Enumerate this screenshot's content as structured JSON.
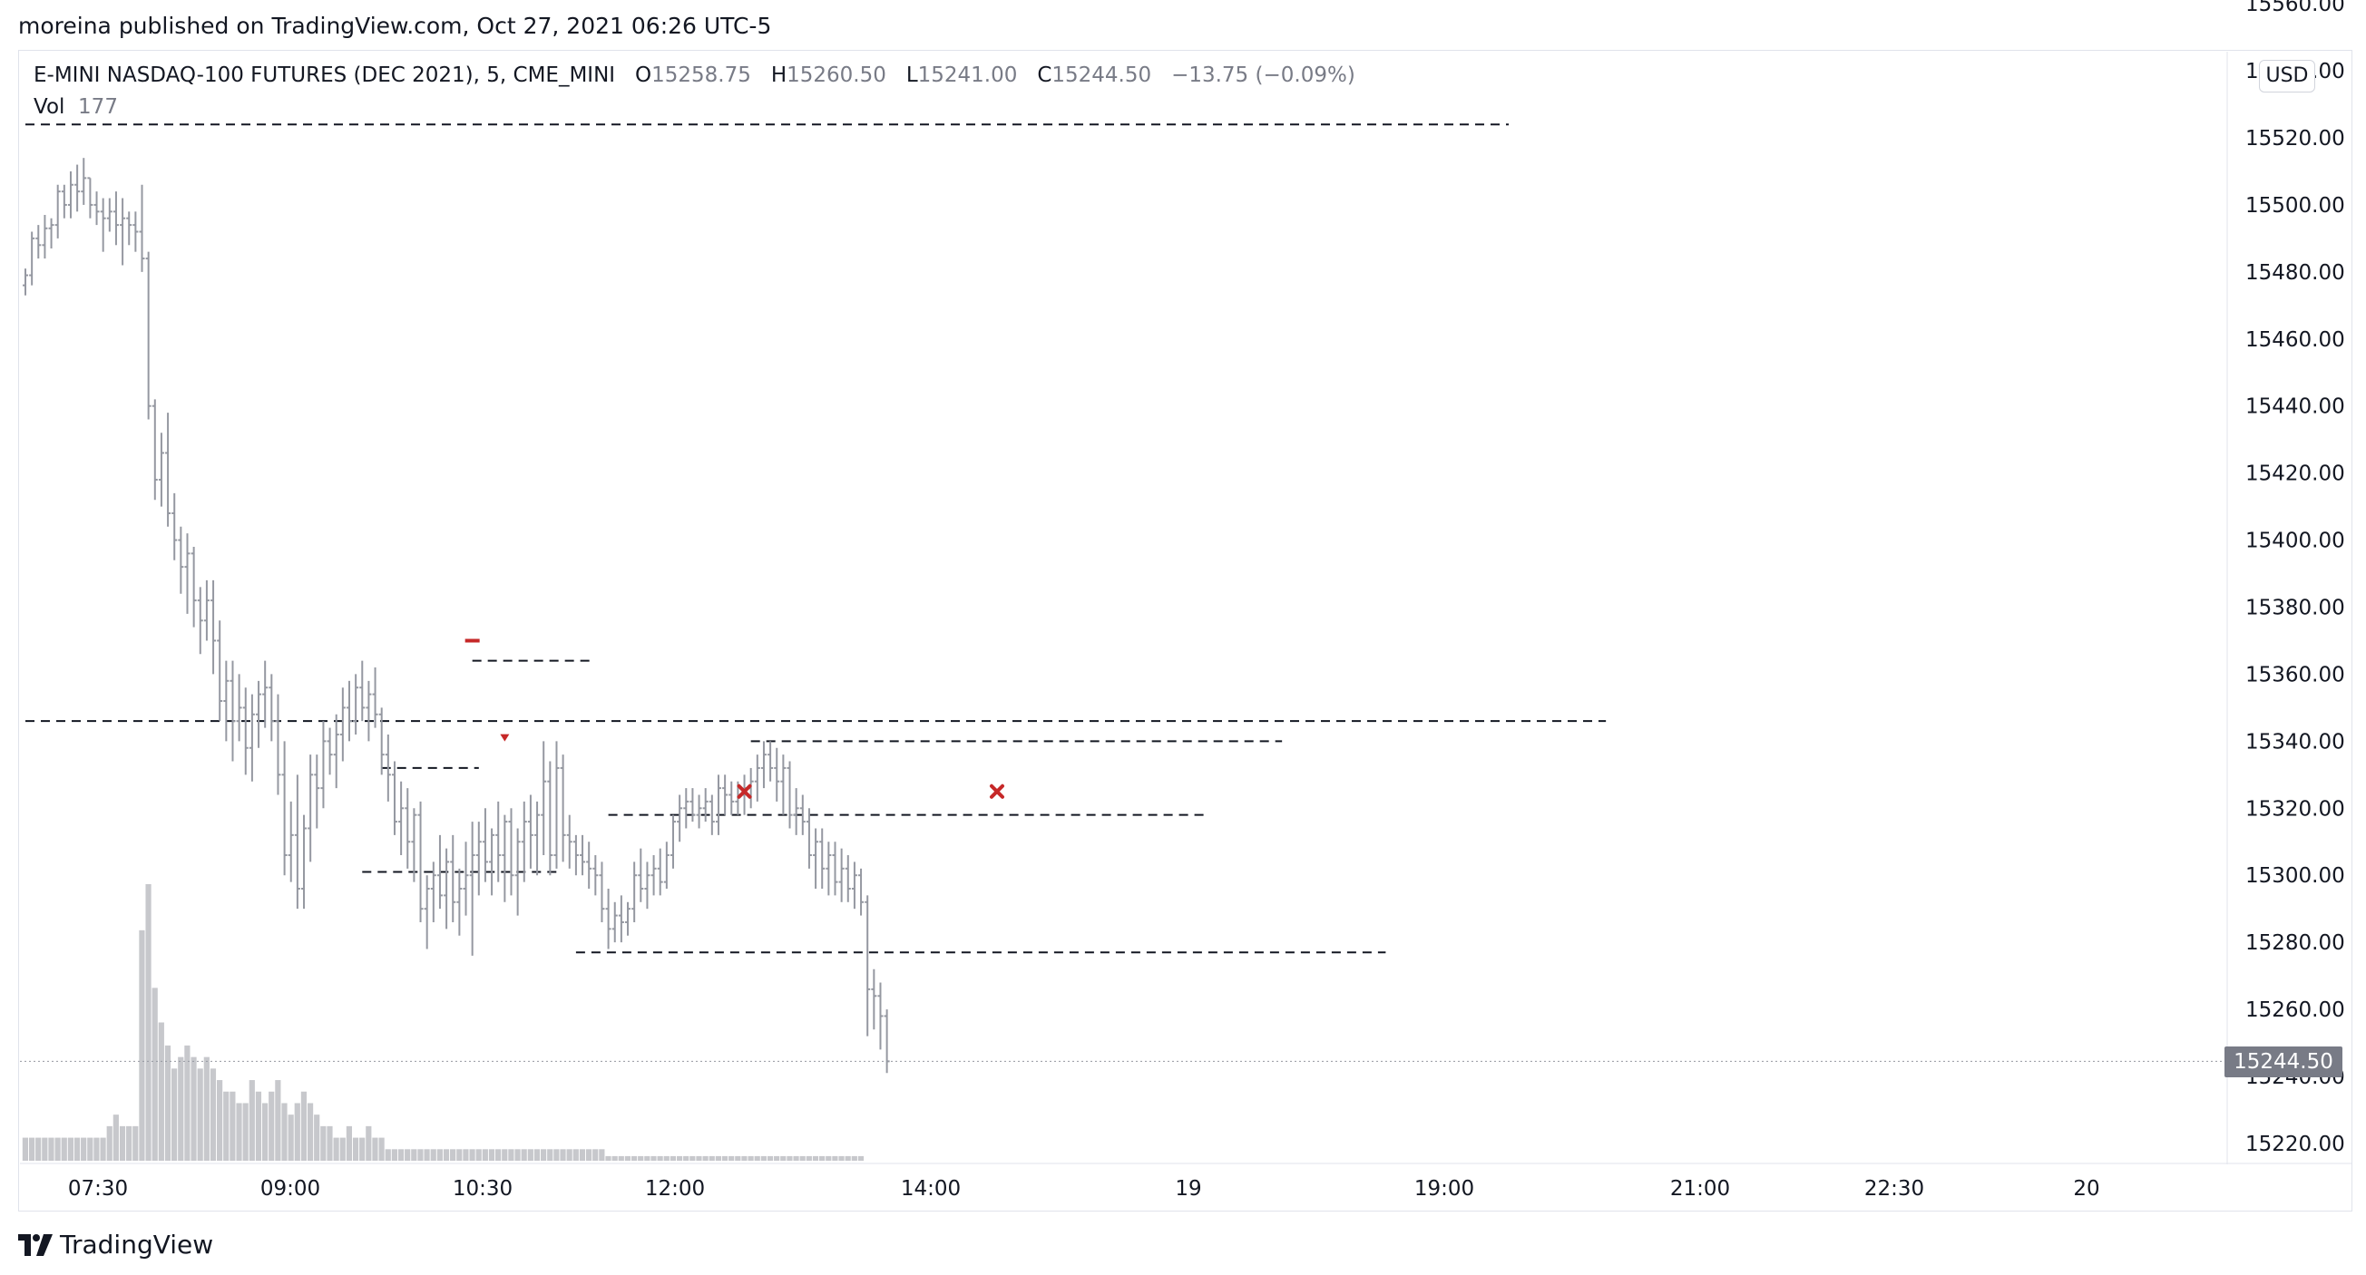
{
  "header": {
    "publish_line": "moreina published on TradingView.com, Oct 27, 2021 06:26 UTC-5"
  },
  "legend": {
    "symbol": "E-MINI NASDAQ-100 FUTURES (DEC 2021), 5, CME_MINI",
    "o_key": "O",
    "o_val": "15258.75",
    "h_key": "H",
    "h_val": "15260.50",
    "l_key": "L",
    "l_val": "15241.00",
    "c_key": "C",
    "c_val": "15244.50",
    "change": "−13.75 (−0.09%)",
    "vol_key": "Vol",
    "vol_val": "177"
  },
  "price_scale": {
    "currency_button": "USD",
    "last_price_label": "15244.50"
  },
  "brand": {
    "name": "TradingView"
  },
  "chart_data": {
    "type": "ohlc",
    "series_color": "#9598a1",
    "volume_color": "#c7c8cc",
    "ylim": [
      15210,
      15556
    ],
    "y_ticks": [
      "15560.00",
      "15540.00",
      "15520.00",
      "15500.00",
      "15480.00",
      "15460.00",
      "15440.00",
      "15420.00",
      "15400.00",
      "15380.00",
      "15360.00",
      "15340.00",
      "15320.00",
      "15300.00",
      "15280.00",
      "15260.00",
      "15240.00",
      "15220.00"
    ],
    "x_ticks": [
      "07:30",
      "09:00",
      "10:30",
      "12:00",
      "14:00",
      "19",
      "19:00",
      "21:00",
      "22:30",
      "20"
    ],
    "last_price": 15244.5,
    "bars_ohlc": [
      [
        15476,
        15481,
        15473,
        15479
      ],
      [
        15479,
        15492,
        15476,
        15490
      ],
      [
        15490,
        15494,
        15484,
        15488
      ],
      [
        15488,
        15497,
        15484,
        15493
      ],
      [
        15493,
        15496,
        15487,
        15494
      ],
      [
        15494,
        15506,
        15490,
        15504
      ],
      [
        15504,
        15506,
        15496,
        15500
      ],
      [
        15500,
        15510,
        15496,
        15506
      ],
      [
        15506,
        15512,
        15498,
        15504
      ],
      [
        15504,
        15514,
        15500,
        15508
      ],
      [
        15508,
        15508,
        15496,
        15500
      ],
      [
        15500,
        15504,
        15494,
        15498
      ],
      [
        15498,
        15502,
        15486,
        15496
      ],
      [
        15496,
        15502,
        15492,
        15498
      ],
      [
        15498,
        15504,
        15488,
        15494
      ],
      [
        15494,
        15502,
        15482,
        15496
      ],
      [
        15496,
        15498,
        15488,
        15494
      ],
      [
        15494,
        15498,
        15486,
        15492
      ],
      [
        15492,
        15506,
        15480,
        15484
      ],
      [
        15484,
        15486,
        15436,
        15440
      ],
      [
        15440,
        15442,
        15412,
        15418
      ],
      [
        15418,
        15432,
        15410,
        15426
      ],
      [
        15426,
        15438,
        15404,
        15408
      ],
      [
        15408,
        15414,
        15394,
        15400
      ],
      [
        15400,
        15404,
        15384,
        15392
      ],
      [
        15392,
        15402,
        15378,
        15396
      ],
      [
        15396,
        15398,
        15374,
        15382
      ],
      [
        15382,
        15386,
        15366,
        15376
      ],
      [
        15376,
        15388,
        15370,
        15382
      ],
      [
        15382,
        15388,
        15360,
        15370
      ],
      [
        15370,
        15376,
        15346,
        15352
      ],
      [
        15352,
        15364,
        15340,
        15358
      ],
      [
        15358,
        15364,
        15334,
        15346
      ],
      [
        15346,
        15360,
        15340,
        15350
      ],
      [
        15350,
        15356,
        15330,
        15338
      ],
      [
        15338,
        15354,
        15328,
        15348
      ],
      [
        15348,
        15358,
        15338,
        15354
      ],
      [
        15354,
        15364,
        15344,
        15356
      ],
      [
        15356,
        15360,
        15340,
        15346
      ],
      [
        15346,
        15354,
        15324,
        15330
      ],
      [
        15330,
        15340,
        15300,
        15306
      ],
      [
        15306,
        15322,
        15298,
        15312
      ],
      [
        15312,
        15330,
        15290,
        15296
      ],
      [
        15296,
        15318,
        15290,
        15314
      ],
      [
        15314,
        15336,
        15304,
        15330
      ],
      [
        15330,
        15336,
        15314,
        15326
      ],
      [
        15326,
        15346,
        15320,
        15340
      ],
      [
        15340,
        15344,
        15330,
        15336
      ],
      [
        15336,
        15348,
        15326,
        15342
      ],
      [
        15342,
        15356,
        15334,
        15350
      ],
      [
        15350,
        15358,
        15340,
        15346
      ],
      [
        15346,
        15360,
        15342,
        15356
      ],
      [
        15356,
        15364,
        15346,
        15350
      ],
      [
        15350,
        15358,
        15340,
        15354
      ],
      [
        15354,
        15362,
        15344,
        15348
      ],
      [
        15348,
        15350,
        15330,
        15336
      ],
      [
        15336,
        15342,
        15322,
        15330
      ],
      [
        15330,
        15334,
        15312,
        15316
      ],
      [
        15316,
        15328,
        15306,
        15320
      ],
      [
        15320,
        15326,
        15302,
        15310
      ],
      [
        15310,
        15320,
        15298,
        15318
      ],
      [
        15318,
        15322,
        15286,
        15290
      ],
      [
        15290,
        15300,
        15278,
        15296
      ],
      [
        15296,
        15304,
        15286,
        15300
      ],
      [
        15300,
        15312,
        15290,
        15294
      ],
      [
        15294,
        15308,
        15284,
        15304
      ],
      [
        15304,
        15312,
        15286,
        15292
      ],
      [
        15292,
        15302,
        15282,
        15296
      ],
      [
        15296,
        15310,
        15288,
        15300
      ],
      [
        15300,
        15316,
        15276,
        15306
      ],
      [
        15306,
        15316,
        15294,
        15310
      ],
      [
        15310,
        15320,
        15298,
        15304
      ],
      [
        15304,
        15314,
        15294,
        15312
      ],
      [
        15312,
        15322,
        15298,
        15306
      ],
      [
        15306,
        15318,
        15292,
        15316
      ],
      [
        15316,
        15320,
        15294,
        15300
      ],
      [
        15300,
        15314,
        15288,
        15310
      ],
      [
        15310,
        15322,
        15298,
        15316
      ],
      [
        15316,
        15324,
        15302,
        15312
      ],
      [
        15312,
        15322,
        15300,
        15318
      ],
      [
        15318,
        15340,
        15306,
        15328
      ],
      [
        15328,
        15334,
        15300,
        15306
      ],
      [
        15306,
        15340,
        15302,
        15332
      ],
      [
        15332,
        15336,
        15304,
        15312
      ],
      [
        15312,
        15318,
        15302,
        15310
      ],
      [
        15310,
        15312,
        15300,
        15306
      ],
      [
        15306,
        15312,
        15300,
        15304
      ],
      [
        15304,
        15310,
        15296,
        15302
      ],
      [
        15302,
        15306,
        15294,
        15300
      ],
      [
        15300,
        15304,
        15286,
        15290
      ],
      [
        15290,
        15296,
        15278,
        15284
      ],
      [
        15284,
        15292,
        15280,
        15288
      ],
      [
        15288,
        15294,
        15280,
        15286
      ],
      [
        15286,
        15292,
        15282,
        15290
      ],
      [
        15290,
        15304,
        15286,
        15300
      ],
      [
        15300,
        15308,
        15292,
        15296
      ],
      [
        15296,
        15304,
        15290,
        15300
      ],
      [
        15300,
        15306,
        15294,
        15302
      ],
      [
        15302,
        15308,
        15294,
        15298
      ],
      [
        15298,
        15310,
        15296,
        15306
      ],
      [
        15306,
        15318,
        15302,
        15316
      ],
      [
        15316,
        15324,
        15310,
        15320
      ],
      [
        15320,
        15326,
        15314,
        15322
      ],
      [
        15322,
        15326,
        15316,
        15318
      ],
      [
        15318,
        15324,
        15314,
        15320
      ],
      [
        15320,
        15326,
        15316,
        15322
      ],
      [
        15322,
        15324,
        15312,
        15316
      ],
      [
        15316,
        15330,
        15312,
        15326
      ],
      [
        15326,
        15330,
        15318,
        15324
      ],
      [
        15324,
        15328,
        15318,
        15322
      ],
      [
        15322,
        15328,
        15318,
        15324
      ],
      [
        15324,
        15330,
        15318,
        15326
      ],
      [
        15326,
        15332,
        15320,
        15328
      ],
      [
        15328,
        15336,
        15322,
        15332
      ],
      [
        15332,
        15340,
        15326,
        15336
      ],
      [
        15336,
        15340,
        15328,
        15332
      ],
      [
        15332,
        15338,
        15322,
        15328
      ],
      [
        15328,
        15336,
        15318,
        15332
      ],
      [
        15332,
        15334,
        15314,
        15318
      ],
      [
        15318,
        15326,
        15312,
        15320
      ],
      [
        15320,
        15324,
        15312,
        15316
      ],
      [
        15316,
        15320,
        15302,
        15306
      ],
      [
        15306,
        15314,
        15296,
        15310
      ],
      [
        15310,
        15314,
        15296,
        15302
      ],
      [
        15302,
        15310,
        15294,
        15306
      ],
      [
        15306,
        15310,
        15294,
        15298
      ],
      [
        15298,
        15308,
        15292,
        15302
      ],
      [
        15302,
        15306,
        15292,
        15296
      ],
      [
        15296,
        15304,
        15290,
        15300
      ],
      [
        15300,
        15302,
        15288,
        15292
      ],
      [
        15292,
        15294,
        15252,
        15266
      ],
      [
        15266,
        15272,
        15254,
        15264
      ],
      [
        15264,
        15268,
        15248,
        15258
      ],
      [
        15258,
        15260,
        15241,
        15244.5
      ]
    ],
    "volume": [
      2,
      2,
      2,
      2,
      2,
      2,
      2,
      2,
      2,
      2,
      2,
      2,
      2,
      3,
      4,
      3,
      3,
      3,
      20,
      24,
      15,
      12,
      10,
      8,
      9,
      10,
      9,
      8,
      9,
      8,
      7,
      6,
      6,
      5,
      5,
      7,
      6,
      5,
      6,
      7,
      5,
      4,
      5,
      6,
      5,
      4,
      3,
      3,
      2,
      2,
      3,
      2,
      2,
      3,
      2,
      2,
      1,
      1,
      1,
      1,
      1,
      1,
      1,
      1,
      1,
      1,
      1,
      1,
      1,
      1,
      1,
      1,
      1,
      1,
      1,
      1,
      1,
      1,
      1,
      1,
      1,
      1,
      1,
      1,
      1,
      1,
      1,
      1,
      1,
      1,
      0.4,
      0.4,
      0.4,
      0.4,
      0.4,
      0.4,
      0.4,
      0.4,
      0.4,
      0.4,
      0.4,
      0.4,
      0.4,
      0.4,
      0.4,
      0.4,
      0.4,
      0.4,
      0.4,
      0.4,
      0.4,
      0.4,
      0.4,
      0.4,
      0.4,
      0.4,
      0.4,
      0.4,
      0.4,
      0.4,
      0.4,
      0.4,
      0.4,
      0.4,
      0.4,
      0.4,
      0.4,
      0.4,
      0.4,
      0.4
    ],
    "level_lines": [
      {
        "price": 15524,
        "from_bar": 0,
        "to_bar": 229
      },
      {
        "price": 15346,
        "from_bar": 0,
        "to_bar": 244
      },
      {
        "price": 15364,
        "from_bar": 69,
        "to_bar": 88
      },
      {
        "price": 15332,
        "from_bar": 55,
        "to_bar": 70
      },
      {
        "price": 15301,
        "from_bar": 52,
        "to_bar": 82
      },
      {
        "price": 15340,
        "from_bar": 112,
        "to_bar": 194
      },
      {
        "price": 15318,
        "from_bar": 90,
        "to_bar": 182
      },
      {
        "price": 15277,
        "from_bar": 85,
        "to_bar": 210
      }
    ],
    "markers": [
      {
        "type": "dash",
        "bar": 69,
        "price": 15370,
        "color": "#c62828"
      },
      {
        "type": "arrow-down",
        "bar": 74,
        "price": 15341,
        "color": "#c62828"
      },
      {
        "type": "x",
        "bar": 111,
        "price": 15325,
        "color": "#c62828"
      },
      {
        "type": "x",
        "bar": 150,
        "price": 15325,
        "color": "#c62828"
      }
    ]
  }
}
